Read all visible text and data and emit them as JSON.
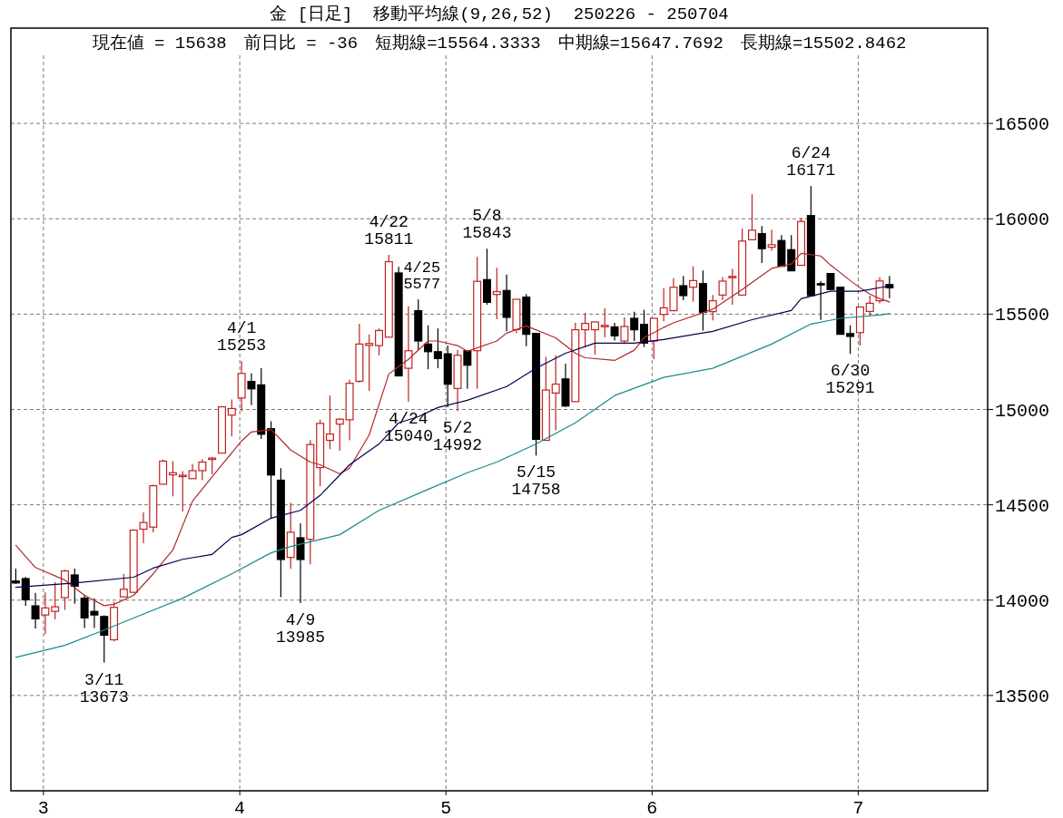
{
  "chart_data": {
    "type": "candlestick",
    "title": "金 [日足]  移動平均線(9,26,52)  250226 - 250704",
    "subtitle": "現在値 = 15638　前日比 = -36　短期線=15564.3333　中期線=15647.7692　長期線=15502.8462",
    "categories": [
      null,
      null,
      null,
      "3",
      null,
      null,
      null,
      null,
      null,
      null,
      null,
      null,
      null,
      null,
      null,
      null,
      null,
      null,
      null,
      null,
      null,
      null,
      null,
      "4",
      null,
      null,
      null,
      null,
      null,
      null,
      null,
      null,
      null,
      null,
      null,
      null,
      null,
      null,
      null,
      null,
      null,
      null,
      null,
      null,
      "5",
      null,
      null,
      null,
      null,
      null,
      null,
      null,
      null,
      null,
      null,
      null,
      null,
      null,
      null,
      null,
      null,
      null,
      null,
      null,
      null,
      "6",
      null,
      null,
      null,
      null,
      null,
      null,
      null,
      null,
      null,
      null,
      null,
      null,
      null,
      null,
      null,
      null,
      null,
      null,
      null,
      null,
      "7",
      null,
      null,
      null
    ],
    "ohlc": [
      [
        14100,
        14165,
        14085,
        14090
      ],
      [
        14113,
        14121,
        13970,
        14002
      ],
      [
        13970,
        14038,
        13851,
        13902
      ],
      [
        13922,
        14041,
        13822,
        13959
      ],
      [
        13941,
        14094,
        13899,
        13965
      ],
      [
        14013,
        14160,
        13949,
        14153
      ],
      [
        14132,
        14165,
        13981,
        14073
      ],
      [
        14010,
        14026,
        13854,
        13907
      ],
      [
        13941,
        14010,
        13854,
        13922
      ],
      [
        13914,
        13920,
        13673,
        13816
      ],
      [
        13792,
        13990,
        13784,
        13962
      ],
      [
        14017,
        14137,
        14017,
        14057
      ],
      [
        14041,
        14372,
        14038,
        14367
      ],
      [
        14372,
        14460,
        14298,
        14407
      ],
      [
        14383,
        14605,
        14356,
        14600
      ],
      [
        14608,
        14737,
        14608,
        14729
      ],
      [
        14657,
        14729,
        14544,
        14668
      ],
      [
        14650,
        14676,
        14465,
        14655
      ],
      [
        14637,
        14713,
        14637,
        14679
      ],
      [
        14679,
        14740,
        14629,
        14724
      ],
      [
        14740,
        14752,
        14660,
        14745
      ],
      [
        14771,
        15017,
        14771,
        15014
      ],
      [
        14970,
        15052,
        14859,
        15005
      ],
      [
        15060,
        15253,
        14990,
        15189
      ],
      [
        15147,
        15189,
        15022,
        15108
      ],
      [
        15129,
        15216,
        14846,
        14870
      ],
      [
        14899,
        14938,
        14426,
        14656
      ],
      [
        14629,
        14692,
        14015,
        14213
      ],
      [
        14224,
        14510,
        14164,
        14356
      ],
      [
        14327,
        14403,
        13985,
        14213
      ],
      [
        14319,
        14840,
        14188,
        14816
      ],
      [
        14695,
        14946,
        14597,
        14927
      ],
      [
        14838,
        15073,
        14791,
        14871
      ],
      [
        14923,
        14955,
        14784,
        14949
      ],
      [
        14946,
        15156,
        14838,
        15137
      ],
      [
        15148,
        15449,
        15140,
        15343
      ],
      [
        15336,
        15394,
        15097,
        15346
      ],
      [
        15335,
        15425,
        15283,
        15414
      ],
      [
        15379,
        15811,
        15378,
        15775
      ],
      [
        15716,
        15748,
        15176,
        15176
      ],
      [
        15216,
        15541,
        15040,
        15308
      ],
      [
        15518,
        15577,
        15311,
        15359
      ],
      [
        15343,
        15441,
        15211,
        15303
      ],
      [
        15303,
        15425,
        15216,
        15267
      ],
      [
        15292,
        15335,
        15013,
        15132
      ],
      [
        15110,
        15311,
        14992,
        15284
      ],
      [
        15308,
        15311,
        15108,
        15232
      ],
      [
        15308,
        15800,
        15108,
        15672
      ],
      [
        15681,
        15843,
        15549,
        15562
      ],
      [
        15603,
        15743,
        15473,
        15618
      ],
      [
        15624,
        15708,
        15410,
        15483
      ],
      [
        15419,
        15578,
        15399,
        15578
      ],
      [
        15589,
        15605,
        15332,
        15394
      ],
      [
        15399,
        15399,
        14758,
        14843
      ],
      [
        14838,
        15276,
        14838,
        15102
      ],
      [
        15086,
        15284,
        14891,
        15133
      ],
      [
        15160,
        15240,
        15013,
        15018
      ],
      [
        15041,
        15454,
        15041,
        15418
      ],
      [
        15418,
        15506,
        15327,
        15451
      ],
      [
        15418,
        15459,
        15287,
        15459
      ],
      [
        15439,
        15530,
        15378,
        15441
      ],
      [
        15433,
        15454,
        15362,
        15386
      ],
      [
        15359,
        15483,
        15346,
        15435
      ],
      [
        15478,
        15513,
        15359,
        15418
      ],
      [
        15446,
        15522,
        15327,
        15348
      ],
      [
        15359,
        15478,
        15264,
        15478
      ],
      [
        15498,
        15636,
        15462,
        15533
      ],
      [
        15518,
        15689,
        15518,
        15641
      ],
      [
        15649,
        15700,
        15573,
        15597
      ],
      [
        15641,
        15751,
        15565,
        15676
      ],
      [
        15660,
        15729,
        15414,
        15510
      ],
      [
        15513,
        15600,
        15467,
        15570
      ],
      [
        15600,
        15695,
        15573,
        15673
      ],
      [
        15695,
        15737,
        15549,
        15698
      ],
      [
        15600,
        15949,
        15600,
        15883
      ],
      [
        15890,
        16129,
        15890,
        15940
      ],
      [
        15922,
        15962,
        15768,
        15843
      ],
      [
        15851,
        15943,
        15832,
        15864
      ],
      [
        15886,
        15914,
        15751,
        15751
      ],
      [
        15838,
        15914,
        15727,
        15727
      ],
      [
        15756,
        16005,
        15756,
        15986
      ],
      [
        16017,
        16171,
        15597,
        15597
      ],
      [
        15660,
        15673,
        15470,
        15658
      ],
      [
        15713,
        15713,
        15629,
        15629
      ],
      [
        15641,
        15641,
        15394,
        15394
      ],
      [
        15398,
        15441,
        15291,
        15383
      ],
      [
        15403,
        15537,
        15335,
        15537
      ],
      [
        15514,
        15597,
        15494,
        15557
      ],
      [
        15570,
        15695,
        15557,
        15674
      ],
      [
        15655,
        15700,
        15584,
        15638
      ]
    ],
    "series": [
      {
        "type": "line",
        "color": "#b42828",
        "values": [
          14287,
          null,
          14171,
          null,
          null,
          14105,
          null,
          14025,
          null,
          13971,
          13978,
          null,
          14025,
          null,
          14138,
          null,
          14263,
          null,
          14519,
          null,
          null,
          14710,
          null,
          14835,
          14882,
          null,
          14895,
          null,
          14787,
          null,
          14724,
          14710,
          null,
          14662,
          14692,
          null,
          14867,
          null,
          15186,
          null,
          15263,
          null,
          15359,
          15359,
          null,
          15335,
          15305,
          null,
          null,
          15359,
          15400,
          null,
          15438,
          null,
          null,
          15376,
          null,
          15295,
          15271,
          null,
          null,
          15257,
          null,
          15311,
          15376,
          null,
          15430,
          15454,
          null,
          null,
          null,
          15526,
          null,
          null,
          15629,
          null,
          null,
          15740,
          null,
          15763,
          15819,
          null,
          15805,
          15757,
          null,
          15676,
          15638,
          15605,
          15581,
          15564
        ]
      },
      {
        "type": "line",
        "color": "#000050",
        "values": [
          14067,
          null,
          null,
          null,
          null,
          null,
          14090,
          null,
          null,
          null,
          null,
          null,
          14120,
          null,
          14168,
          null,
          null,
          14214,
          null,
          null,
          14240,
          null,
          14329,
          14343,
          null,
          null,
          14430,
          null,
          null,
          14471,
          null,
          14549,
          null,
          null,
          14710,
          null,
          null,
          14819,
          null,
          14930,
          null,
          14962,
          null,
          15010,
          null,
          null,
          15048,
          null,
          null,
          null,
          15120,
          null,
          null,
          15216,
          null,
          null,
          15295,
          null,
          null,
          15348,
          null,
          null,
          null,
          15348,
          null,
          null,
          15367,
          null,
          null,
          null,
          null,
          15410,
          null,
          null,
          null,
          15471,
          null,
          null,
          null,
          15519,
          15581,
          null,
          null,
          15620,
          null,
          null,
          15620,
          null,
          null,
          15648
        ]
      },
      {
        "type": "line",
        "color": "#1a8a8a",
        "values": [
          13700,
          null,
          null,
          null,
          null,
          13763,
          null,
          null,
          null,
          13843,
          null,
          null,
          13906,
          null,
          null,
          null,
          null,
          14010,
          null,
          null,
          null,
          null,
          14138,
          null,
          null,
          null,
          14248,
          null,
          14281,
          null,
          null,
          null,
          null,
          14343,
          null,
          null,
          null,
          14471,
          null,
          null,
          null,
          null,
          14581,
          null,
          null,
          null,
          14668,
          null,
          null,
          14724,
          null,
          null,
          null,
          14819,
          null,
          null,
          null,
          14930,
          null,
          null,
          null,
          15073,
          null,
          null,
          null,
          null,
          15168,
          null,
          null,
          null,
          null,
          15216,
          null,
          null,
          null,
          null,
          null,
          15343,
          null,
          null,
          null,
          15448,
          null,
          null,
          15478,
          null,
          null,
          null,
          15495,
          15502
        ]
      }
    ],
    "ylim": [
      13000,
      17000
    ],
    "yticks": [
      13500,
      14000,
      14500,
      15000,
      15500,
      16000,
      16500
    ],
    "grid": true,
    "annotations": [
      {
        "text": "3/11\n13673",
        "y": 13673
      },
      {
        "text": "4/1\n15253",
        "y": 15253
      },
      {
        "text": "4/9\n13985",
        "y": 13985
      },
      {
        "text": "4/22\n15811",
        "y": 15811
      },
      {
        "text": "4/24\n15040",
        "y": 15040
      },
      {
        "text": "4/25\n5577",
        "y": 15577
      },
      {
        "text": "5/2\n14992",
        "y": 14992
      },
      {
        "text": "5/8\n15843",
        "y": 15843
      },
      {
        "text": "5/15\n14758",
        "y": 14758
      },
      {
        "text": "6/24\n16171",
        "y": 16171
      },
      {
        "text": "6/30\n15291",
        "y": 15291
      }
    ]
  }
}
